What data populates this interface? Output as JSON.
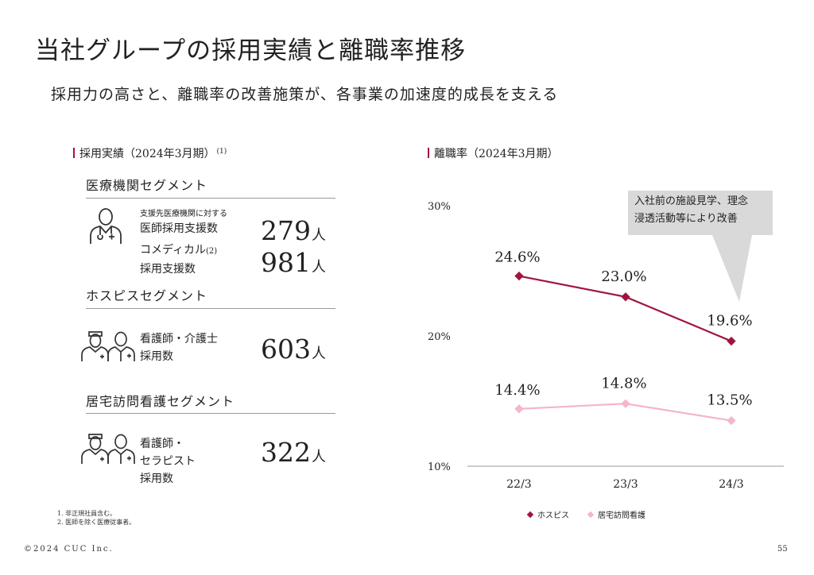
{
  "title": "当社グループの採用実績と離職率推移",
  "subtitle": "採用力の高さと、離職率の改善施策が、各事業の加速度的成長を支える",
  "left": {
    "heading": "採用実績（2024年3月期）",
    "heading_note": "(1)",
    "segments": [
      {
        "title": "医療機関セグメント",
        "items": [
          {
            "label_small": "支援先医療機関に対する",
            "label": "医師採用支援数",
            "value": "279",
            "unit": "人"
          },
          {
            "label": "コメディカル",
            "label_note": "(2)",
            "label2": "採用支援数",
            "value": "981",
            "unit": "人"
          }
        ]
      },
      {
        "title": "ホスピスセグメント",
        "items": [
          {
            "label": "看護師・介護士",
            "label2": "採用数",
            "value": "603",
            "unit": "人"
          }
        ]
      },
      {
        "title": "居宅訪問看護セグメント",
        "items": [
          {
            "label": "看護師・",
            "label2": "セラピスト",
            "label3": "採用数",
            "value": "322",
            "unit": "人"
          }
        ]
      }
    ],
    "footnotes": [
      "1. 非正規社員含む。",
      "2. 医師を除く医療従事者。"
    ]
  },
  "right": {
    "heading": "離職率（2024年3月期）",
    "callout": [
      "入社前の施設見学、理念",
      "浸透活動等により改善"
    ]
  },
  "chart_data": {
    "type": "line",
    "categories": [
      "22/3",
      "23/3",
      "24/3"
    ],
    "yticks": [
      "30%",
      "20%",
      "10%"
    ],
    "ylim": [
      10,
      30
    ],
    "series": [
      {
        "name": "ホスピス",
        "values": [
          24.6,
          23.0,
          19.6
        ],
        "labels": [
          "24.6%",
          "23.0%",
          "19.6%"
        ],
        "color": "#a0153e"
      },
      {
        "name": "居宅訪問看護",
        "values": [
          14.4,
          14.8,
          13.5
        ],
        "labels": [
          "14.4%",
          "14.8%",
          "13.5%"
        ],
        "color": "#f4b6c8"
      }
    ]
  },
  "footer": {
    "copyright": "©2024 CUC Inc.",
    "page": "55"
  },
  "colors": {
    "accent": "#a0153e",
    "light": "#f4b6c8",
    "callout_bg": "#d9d9d9"
  }
}
